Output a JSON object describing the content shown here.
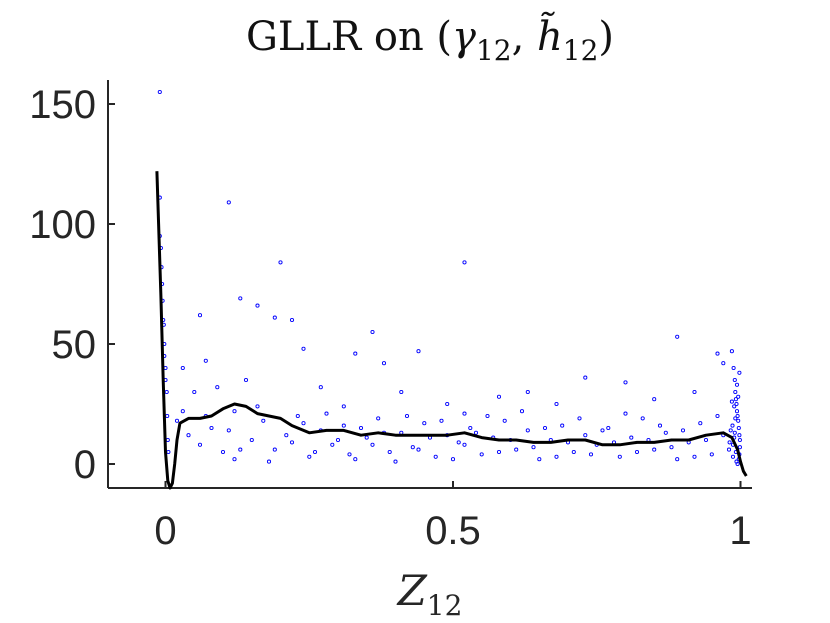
{
  "chart_data": {
    "type": "scatter",
    "title": "GLLR on (γ12, h̃12)",
    "title_main": "GLLR on (",
    "title_gamma": "γ",
    "title_gamma_sub": "12",
    "title_sep": ", ",
    "title_h": "h̃",
    "title_h_sub": "12",
    "title_close": ")",
    "xlabel": "Z",
    "xlabel_sub": "12",
    "ylabel": "",
    "xlim": [
      -0.1,
      1.02
    ],
    "ylim": [
      -10,
      160
    ],
    "xticks": [
      0,
      0.5,
      1
    ],
    "xtick_labels": [
      "0",
      "0.5",
      "1"
    ],
    "yticks": [
      0,
      50,
      100,
      150
    ],
    "ytick_labels": [
      "0",
      "50",
      "100",
      "150"
    ],
    "grid": false,
    "series": [
      {
        "kind": "scatter",
        "color": "#0000ff",
        "marker": "circle-open",
        "points": [
          [
            -0.01,
            155
          ],
          [
            -0.01,
            111
          ],
          [
            -0.01,
            95
          ],
          [
            -0.008,
            90
          ],
          [
            -0.007,
            82
          ],
          [
            -0.006,
            75
          ],
          [
            -0.005,
            68
          ],
          [
            -0.004,
            60
          ],
          [
            -0.003,
            58
          ],
          [
            -0.002,
            50
          ],
          [
            -0.002,
            45
          ],
          [
            0.0,
            40
          ],
          [
            0.0,
            35
          ],
          [
            0.002,
            30
          ],
          [
            0.003,
            20
          ],
          [
            0.004,
            10
          ],
          [
            0.005,
            5
          ],
          [
            0.11,
            109
          ],
          [
            0.2,
            84
          ],
          [
            0.52,
            84
          ],
          [
            0.13,
            69
          ],
          [
            0.19,
            61
          ],
          [
            0.16,
            66
          ],
          [
            0.36,
            55
          ],
          [
            0.89,
            53
          ],
          [
            0.06,
            62
          ],
          [
            0.22,
            60
          ],
          [
            0.24,
            48
          ],
          [
            0.33,
            46
          ],
          [
            0.44,
            47
          ],
          [
            0.38,
            42
          ],
          [
            0.07,
            43
          ],
          [
            0.03,
            40
          ],
          [
            0.05,
            30
          ],
          [
            0.09,
            32
          ],
          [
            0.14,
            35
          ],
          [
            0.27,
            32
          ],
          [
            0.41,
            30
          ],
          [
            0.58,
            28
          ],
          [
            0.63,
            30
          ],
          [
            0.73,
            36
          ],
          [
            0.8,
            34
          ],
          [
            0.96,
            46
          ],
          [
            0.97,
            42
          ],
          [
            0.68,
            25
          ],
          [
            0.49,
            25
          ],
          [
            0.31,
            24
          ],
          [
            0.12,
            22
          ],
          [
            0.52,
            21
          ],
          [
            0.85,
            27
          ],
          [
            0.92,
            30
          ],
          [
            0.02,
            18
          ],
          [
            0.04,
            12
          ],
          [
            0.06,
            8
          ],
          [
            0.08,
            15
          ],
          [
            0.1,
            5
          ],
          [
            0.12,
            2
          ],
          [
            0.15,
            10
          ],
          [
            0.17,
            18
          ],
          [
            0.19,
            6
          ],
          [
            0.21,
            12
          ],
          [
            0.23,
            20
          ],
          [
            0.25,
            3
          ],
          [
            0.27,
            14
          ],
          [
            0.29,
            8
          ],
          [
            0.31,
            16
          ],
          [
            0.33,
            2
          ],
          [
            0.35,
            11
          ],
          [
            0.37,
            19
          ],
          [
            0.39,
            5
          ],
          [
            0.41,
            13
          ],
          [
            0.43,
            7
          ],
          [
            0.45,
            17
          ],
          [
            0.47,
            3
          ],
          [
            0.49,
            12
          ],
          [
            0.51,
            9
          ],
          [
            0.53,
            15
          ],
          [
            0.55,
            4
          ],
          [
            0.57,
            11
          ],
          [
            0.59,
            18
          ],
          [
            0.61,
            6
          ],
          [
            0.63,
            14
          ],
          [
            0.65,
            2
          ],
          [
            0.67,
            10
          ],
          [
            0.69,
            16
          ],
          [
            0.71,
            5
          ],
          [
            0.73,
            12
          ],
          [
            0.75,
            8
          ],
          [
            0.77,
            15
          ],
          [
            0.79,
            3
          ],
          [
            0.81,
            11
          ],
          [
            0.83,
            19
          ],
          [
            0.85,
            6
          ],
          [
            0.87,
            13
          ],
          [
            0.89,
            2
          ],
          [
            0.91,
            9
          ],
          [
            0.93,
            17
          ],
          [
            0.95,
            4
          ],
          [
            0.97,
            12
          ],
          [
            0.03,
            22
          ],
          [
            0.07,
            20
          ],
          [
            0.11,
            14
          ],
          [
            0.13,
            6
          ],
          [
            0.16,
            24
          ],
          [
            0.18,
            1
          ],
          [
            0.22,
            9
          ],
          [
            0.24,
            17
          ],
          [
            0.26,
            5
          ],
          [
            0.28,
            21
          ],
          [
            0.3,
            10
          ],
          [
            0.32,
            4
          ],
          [
            0.34,
            15
          ],
          [
            0.36,
            8
          ],
          [
            0.38,
            13
          ],
          [
            0.4,
            1
          ],
          [
            0.42,
            20
          ],
          [
            0.44,
            6
          ],
          [
            0.46,
            11
          ],
          [
            0.48,
            18
          ],
          [
            0.5,
            2
          ],
          [
            0.52,
            8
          ],
          [
            0.54,
            13
          ],
          [
            0.56,
            20
          ],
          [
            0.58,
            5
          ],
          [
            0.6,
            10
          ],
          [
            0.62,
            22
          ],
          [
            0.64,
            7
          ],
          [
            0.66,
            15
          ],
          [
            0.68,
            3
          ],
          [
            0.7,
            9
          ],
          [
            0.72,
            19
          ],
          [
            0.74,
            4
          ],
          [
            0.76,
            14
          ],
          [
            0.78,
            9
          ],
          [
            0.8,
            21
          ],
          [
            0.82,
            5
          ],
          [
            0.84,
            10
          ],
          [
            0.86,
            16
          ],
          [
            0.88,
            7
          ],
          [
            0.9,
            14
          ],
          [
            0.92,
            3
          ],
          [
            0.94,
            10
          ],
          [
            0.96,
            20
          ],
          [
            0.985,
            47
          ],
          [
            0.988,
            40
          ],
          [
            0.99,
            35
          ],
          [
            0.991,
            30
          ],
          [
            0.992,
            27
          ],
          [
            0.993,
            25
          ],
          [
            0.994,
            22
          ],
          [
            0.995,
            20
          ],
          [
            0.996,
            18
          ],
          [
            0.997,
            15
          ],
          [
            0.998,
            12
          ],
          [
            0.999,
            10
          ],
          [
            0.999,
            7
          ],
          [
            0.998,
            4
          ],
          [
            0.997,
            2
          ],
          [
            0.995,
            0
          ],
          [
            0.986,
            16
          ],
          [
            0.987,
            8
          ],
          [
            0.989,
            24
          ],
          [
            0.99,
            13
          ],
          [
            0.992,
            5
          ],
          [
            0.994,
            33
          ],
          [
            0.996,
            28
          ],
          [
            0.998,
            38
          ],
          [
            0.993,
            1
          ],
          [
            0.991,
            19
          ],
          [
            0.989,
            11
          ],
          [
            0.987,
            3
          ],
          [
            0.985,
            26
          ],
          [
            0.983,
            14
          ],
          [
            0.981,
            9
          ],
          [
            0.98,
            6
          ]
        ]
      },
      {
        "kind": "line",
        "color": "#000000",
        "points": [
          [
            -0.015,
            122
          ],
          [
            -0.012,
            100
          ],
          [
            -0.008,
            70
          ],
          [
            -0.004,
            35
          ],
          [
            0.0,
            5
          ],
          [
            0.004,
            -7
          ],
          [
            0.008,
            -10
          ],
          [
            0.012,
            -8
          ],
          [
            0.016,
            0
          ],
          [
            0.02,
            10
          ],
          [
            0.025,
            17
          ],
          [
            0.04,
            19
          ],
          [
            0.06,
            19
          ],
          [
            0.08,
            20
          ],
          [
            0.1,
            23
          ],
          [
            0.12,
            25
          ],
          [
            0.14,
            24
          ],
          [
            0.16,
            21
          ],
          [
            0.18,
            20
          ],
          [
            0.2,
            19
          ],
          [
            0.22,
            16
          ],
          [
            0.25,
            13
          ],
          [
            0.28,
            14
          ],
          [
            0.31,
            14
          ],
          [
            0.34,
            12
          ],
          [
            0.37,
            13
          ],
          [
            0.4,
            12
          ],
          [
            0.43,
            12
          ],
          [
            0.46,
            12
          ],
          [
            0.49,
            12
          ],
          [
            0.52,
            13
          ],
          [
            0.55,
            11
          ],
          [
            0.58,
            10
          ],
          [
            0.61,
            10
          ],
          [
            0.64,
            9
          ],
          [
            0.67,
            9
          ],
          [
            0.7,
            10
          ],
          [
            0.73,
            10
          ],
          [
            0.76,
            8
          ],
          [
            0.79,
            8
          ],
          [
            0.82,
            9
          ],
          [
            0.85,
            9
          ],
          [
            0.88,
            10
          ],
          [
            0.91,
            10
          ],
          [
            0.94,
            12
          ],
          [
            0.97,
            13
          ],
          [
            0.985,
            11
          ],
          [
            0.995,
            6
          ],
          [
            1.0,
            1
          ],
          [
            1.005,
            -3
          ],
          [
            1.01,
            -5
          ]
        ]
      }
    ]
  }
}
